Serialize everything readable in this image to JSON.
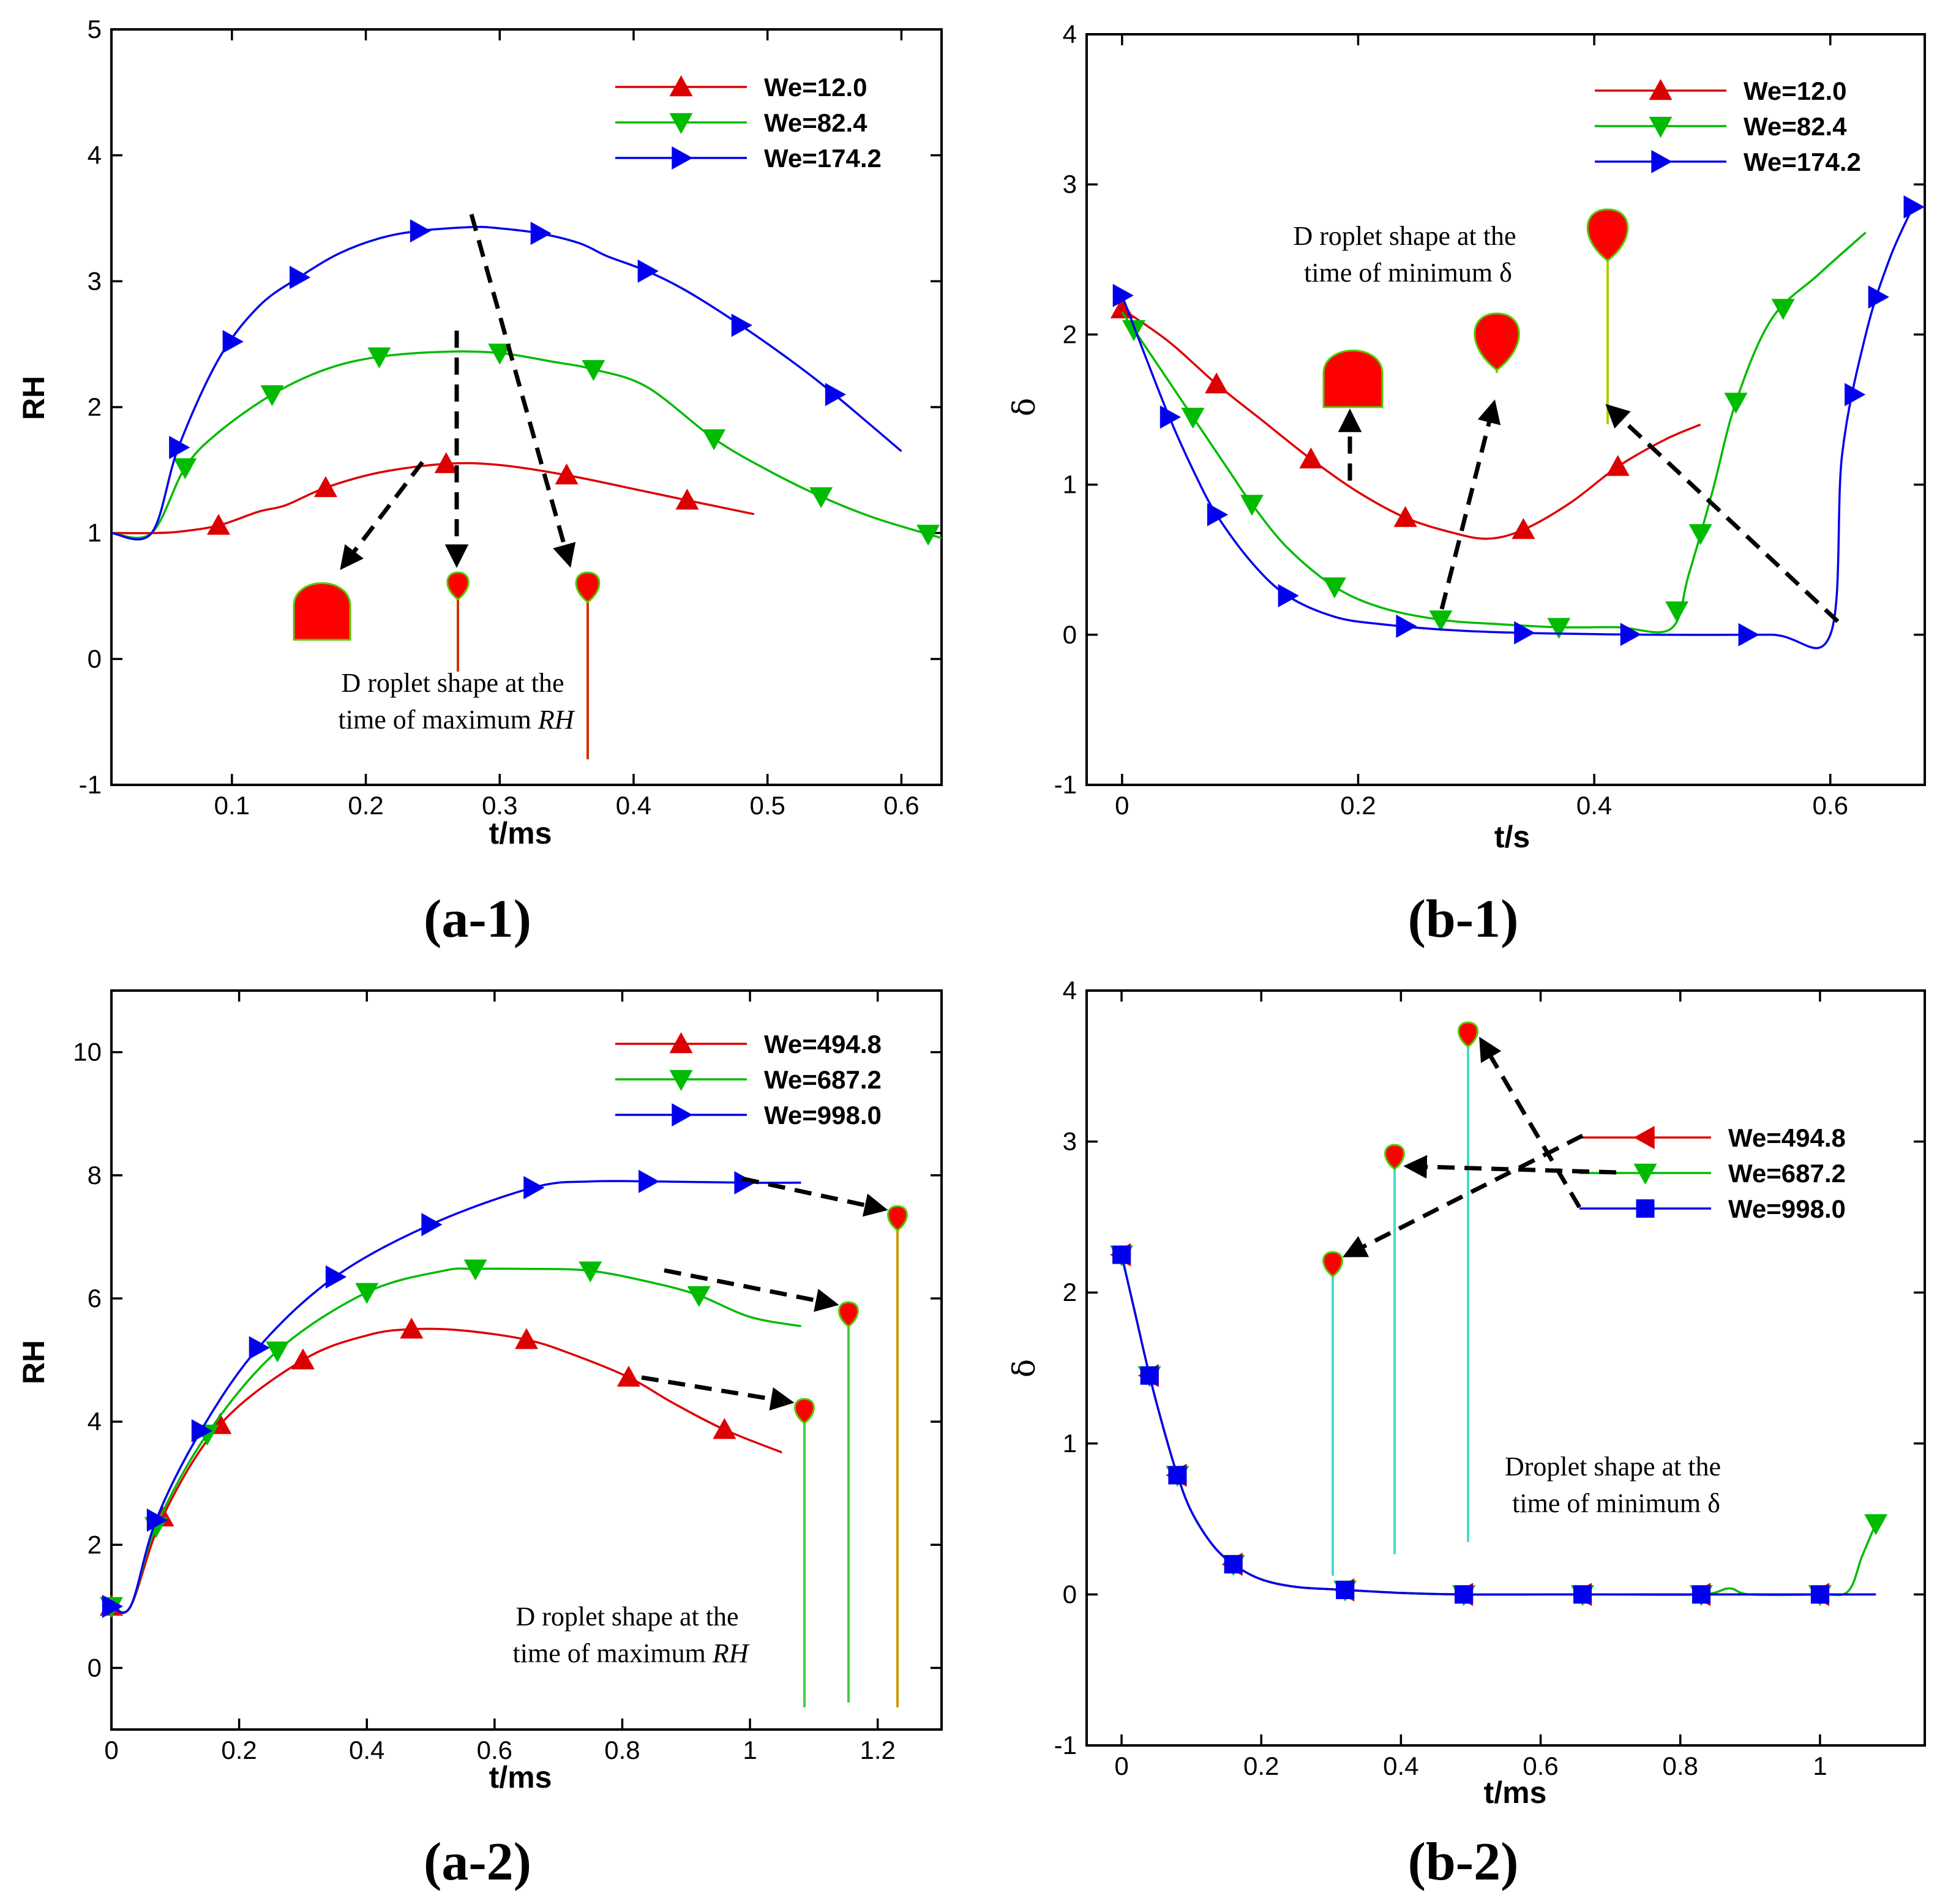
{
  "chart_data": [
    {
      "id": "a1",
      "type": "line",
      "panel_label": "(a-1)",
      "xlabel": "t/ms",
      "ylabel": "RH",
      "xlim": [
        0.01,
        0.63
      ],
      "ylim": [
        -1,
        5
      ],
      "xticks": [
        0.1,
        0.2,
        0.3,
        0.4,
        0.5,
        0.6
      ],
      "xtick_labels": [
        "0.1",
        "0.2",
        "0.3",
        "0.4",
        "0.5",
        "0.6"
      ],
      "yticks": [
        -1,
        0,
        1,
        2,
        3,
        4,
        5
      ],
      "ytick_labels": [
        "-1",
        "0",
        "1",
        "2",
        "3",
        "4",
        "5"
      ],
      "series": [
        {
          "name": "We=12.0",
          "color": "#dd0000",
          "marker": "triangle-up",
          "x": [
            0.01,
            0.04,
            0.06,
            0.09,
            0.12,
            0.14,
            0.17,
            0.21,
            0.26,
            0.3,
            0.35,
            0.4,
            0.44,
            0.49
          ],
          "y": [
            1.0,
            1.0,
            1.01,
            1.06,
            1.17,
            1.22,
            1.36,
            1.48,
            1.55,
            1.54,
            1.46,
            1.35,
            1.26,
            1.15
          ],
          "markers_x": [
            0.09,
            0.17,
            0.26,
            0.35,
            0.44
          ]
        },
        {
          "name": "We=82.4",
          "color": "#00bb00",
          "marker": "triangle-down",
          "x": [
            0.01,
            0.04,
            0.065,
            0.09,
            0.13,
            0.17,
            0.21,
            0.26,
            0.3,
            0.34,
            0.37,
            0.41,
            0.46,
            0.5,
            0.54,
            0.58,
            0.63
          ],
          "y": [
            1.0,
            1.0,
            1.52,
            1.8,
            2.1,
            2.3,
            2.4,
            2.44,
            2.43,
            2.36,
            2.3,
            2.16,
            1.75,
            1.5,
            1.29,
            1.12,
            0.96
          ],
          "markers_x": [
            0.065,
            0.13,
            0.21,
            0.3,
            0.37,
            0.46,
            0.54,
            0.62
          ]
        },
        {
          "name": "We=174.2",
          "color": "#0000ee",
          "marker": "triangle-right",
          "x": [
            0.01,
            0.04,
            0.06,
            0.09,
            0.12,
            0.15,
            0.18,
            0.21,
            0.24,
            0.28,
            0.3,
            0.33,
            0.36,
            0.38,
            0.41,
            0.44,
            0.48,
            0.52,
            0.55,
            0.6
          ],
          "y": [
            1.0,
            1.0,
            1.68,
            2.38,
            2.8,
            3.03,
            3.22,
            3.34,
            3.4,
            3.43,
            3.42,
            3.38,
            3.3,
            3.2,
            3.08,
            2.92,
            2.65,
            2.35,
            2.1,
            1.65
          ],
          "markers_x": [
            0.06,
            0.1,
            0.15,
            0.24,
            0.33,
            0.41,
            0.48,
            0.55
          ]
        }
      ],
      "annotation": [
        "D roplet  shape at the",
        "time of maximum",
        "RH"
      ]
    },
    {
      "id": "b1",
      "type": "line",
      "panel_label": "(b-1)",
      "xlabel": "t/s",
      "ylabel": "δ",
      "xlim": [
        -0.03,
        0.68
      ],
      "ylim": [
        -1,
        4
      ],
      "xticks": [
        0,
        0.2,
        0.4,
        0.6
      ],
      "xtick_labels": [
        "0",
        "0.2",
        "0.4",
        "0.6"
      ],
      "yticks": [
        -1,
        0,
        1,
        2,
        3,
        4
      ],
      "ytick_labels": [
        "-1",
        "0",
        "1",
        "2",
        "3",
        "4"
      ],
      "series": [
        {
          "name": "We=12.0",
          "color": "#dd0000",
          "marker": "triangle-up",
          "x": [
            0,
            0.04,
            0.08,
            0.12,
            0.16,
            0.2,
            0.24,
            0.28,
            0.31,
            0.34,
            0.38,
            0.42,
            0.46,
            0.49
          ],
          "y": [
            2.17,
            1.95,
            1.67,
            1.42,
            1.17,
            0.95,
            0.78,
            0.68,
            0.64,
            0.7,
            0.88,
            1.12,
            1.3,
            1.4
          ],
          "markers_x": [
            0,
            0.08,
            0.16,
            0.24,
            0.34,
            0.42
          ]
        },
        {
          "name": "We=82.4",
          "color": "#00bb00",
          "marker": "triangle-down",
          "x": [
            0,
            0.03,
            0.06,
            0.09,
            0.11,
            0.14,
            0.18,
            0.22,
            0.27,
            0.32,
            0.37,
            0.42,
            0.465,
            0.48,
            0.5,
            0.52,
            0.55,
            0.59,
            0.63
          ],
          "y": [
            2.15,
            1.8,
            1.45,
            1.1,
            0.87,
            0.58,
            0.32,
            0.18,
            0.1,
            0.07,
            0.05,
            0.05,
            0.04,
            0.4,
            0.95,
            1.55,
            2.1,
            2.4,
            2.68
          ],
          "markers_x": [
            0.01,
            0.06,
            0.11,
            0.18,
            0.27,
            0.37,
            0.47,
            0.49,
            0.52,
            0.56
          ]
        },
        {
          "name": "We=174.2",
          "color": "#0000ee",
          "marker": "triangle-right",
          "x": [
            0,
            0.02,
            0.04,
            0.06,
            0.08,
            0.11,
            0.14,
            0.18,
            0.22,
            0.28,
            0.35,
            0.45,
            0.55,
            0.6,
            0.61,
            0.63,
            0.65,
            0.67
          ],
          "y": [
            2.26,
            1.85,
            1.45,
            1.1,
            0.8,
            0.48,
            0.26,
            0.12,
            0.07,
            0.03,
            0.01,
            0.0,
            0.0,
            0.0,
            1.2,
            2.0,
            2.5,
            2.85
          ],
          "markers_x": [
            0,
            0.04,
            0.08,
            0.14,
            0.24,
            0.34,
            0.43,
            0.53,
            0.62,
            0.64,
            0.67
          ]
        }
      ],
      "annotation": [
        "D roplet  shape at the",
        "time of minimum δ"
      ]
    },
    {
      "id": "a2",
      "type": "line",
      "panel_label": "(a-2)",
      "xlabel": "t/ms",
      "ylabel": "RH",
      "xlim": [
        0,
        1.3
      ],
      "ylim": [
        -1,
        11
      ],
      "xticks": [
        0,
        0.2,
        0.4,
        0.6,
        0.8,
        1,
        1.2
      ],
      "xtick_labels": [
        "0",
        "0.2",
        "0.4",
        "0.6",
        "0.8",
        "1",
        "1.2"
      ],
      "yticks": [
        0,
        2,
        4,
        6,
        8,
        10
      ],
      "ytick_labels": [
        "0",
        "2",
        "4",
        "6",
        "8",
        "10"
      ],
      "series": [
        {
          "name": "We=494.8",
          "color": "#dd0000",
          "marker": "triangle-up",
          "x": [
            0,
            0.03,
            0.08,
            0.17,
            0.3,
            0.4,
            0.47,
            0.55,
            0.65,
            0.72,
            0.81,
            0.88,
            0.96,
            1.05
          ],
          "y": [
            1.0,
            1.0,
            2.45,
            3.95,
            5.0,
            5.4,
            5.5,
            5.48,
            5.33,
            5.1,
            4.72,
            4.3,
            3.87,
            3.5
          ],
          "markers_x": [
            0,
            0.08,
            0.17,
            0.3,
            0.47,
            0.65,
            0.81,
            0.96
          ]
        },
        {
          "name": "We=687.2",
          "color": "#00bb00",
          "marker": "triangle-down",
          "x": [
            0,
            0.03,
            0.07,
            0.15,
            0.26,
            0.4,
            0.52,
            0.57,
            0.65,
            0.75,
            0.85,
            0.92,
            1.0,
            1.08
          ],
          "y": [
            1.0,
            1.0,
            2.3,
            3.8,
            5.15,
            6.1,
            6.45,
            6.48,
            6.48,
            6.45,
            6.25,
            6.05,
            5.7,
            5.55
          ],
          "markers_x": [
            0,
            0.07,
            0.15,
            0.26,
            0.4,
            0.57,
            0.75,
            0.92
          ]
        },
        {
          "name": "We=998.0",
          "color": "#0000ee",
          "marker": "triangle-right",
          "x": [
            0,
            0.03,
            0.07,
            0.14,
            0.23,
            0.35,
            0.5,
            0.66,
            0.75,
            0.85,
            0.99,
            1.08
          ],
          "y": [
            1.0,
            1.0,
            2.4,
            3.85,
            5.2,
            6.35,
            7.2,
            7.8,
            7.9,
            7.9,
            7.88,
            7.88
          ],
          "markers_x": [
            0,
            0.07,
            0.14,
            0.23,
            0.35,
            0.5,
            0.66,
            0.84,
            0.99
          ]
        }
      ],
      "annotation": [
        "D roplet  shape at the",
        "time of maximum",
        "RH"
      ]
    },
    {
      "id": "b2",
      "type": "line",
      "panel_label": "(b-2)",
      "xlabel": "t/ms",
      "ylabel": "δ",
      "xlim": [
        -0.05,
        1.15
      ],
      "ylim": [
        -1,
        4
      ],
      "xticks": [
        0,
        0.2,
        0.4,
        0.6,
        0.8,
        1
      ],
      "xtick_labels": [
        "0",
        "0.2",
        "0.4",
        "0.6",
        "0.8",
        "1"
      ],
      "yticks": [
        -1,
        0,
        1,
        2,
        3,
        4
      ],
      "ytick_labels": [
        "-1",
        "0",
        "1",
        "2",
        "3",
        "4"
      ],
      "series": [
        {
          "name": "We=494.8",
          "color": "#dd0000",
          "marker": "triangle-left",
          "x": [
            0,
            0.02,
            0.04,
            0.06,
            0.08,
            0.1,
            0.13,
            0.16,
            0.2,
            0.25,
            0.32,
            0.4,
            0.49,
            0.6,
            0.7,
            0.83,
            0.9,
            1.0,
            1.08
          ],
          "y": [
            2.25,
            1.85,
            1.45,
            1.1,
            0.79,
            0.55,
            0.33,
            0.2,
            0.1,
            0.05,
            0.03,
            0.01,
            0.0,
            0.0,
            0.0,
            0.0,
            0.0,
            0.0,
            0.0
          ],
          "markers_x": [
            0,
            0.04,
            0.08,
            0.16,
            0.32,
            0.49,
            0.66,
            0.83,
            1.0
          ]
        },
        {
          "name": "We=687.2",
          "color": "#00bb00",
          "marker": "triangle-down",
          "x": [
            0,
            0.02,
            0.04,
            0.06,
            0.08,
            0.1,
            0.13,
            0.16,
            0.2,
            0.25,
            0.32,
            0.4,
            0.49,
            0.6,
            0.7,
            0.83,
            0.87,
            0.9,
            1.0,
            1.04,
            1.06,
            1.08
          ],
          "y": [
            2.25,
            1.85,
            1.45,
            1.1,
            0.79,
            0.55,
            0.33,
            0.2,
            0.1,
            0.05,
            0.03,
            0.01,
            0.0,
            0.0,
            0.0,
            0.0,
            0.04,
            0.0,
            0.0,
            0.02,
            0.25,
            0.47
          ],
          "markers_x": [
            0,
            0.04,
            0.08,
            0.16,
            0.32,
            0.49,
            0.66,
            0.83,
            1.0,
            1.08
          ]
        },
        {
          "name": "We=998.0",
          "color": "#0000ee",
          "marker": "square",
          "x": [
            0,
            0.02,
            0.04,
            0.06,
            0.08,
            0.1,
            0.13,
            0.16,
            0.2,
            0.25,
            0.32,
            0.4,
            0.49,
            0.6,
            0.7,
            0.83,
            0.9,
            1.0,
            1.08
          ],
          "y": [
            2.25,
            1.85,
            1.45,
            1.1,
            0.79,
            0.55,
            0.33,
            0.2,
            0.1,
            0.05,
            0.03,
            0.01,
            0.0,
            0.0,
            0.0,
            0.0,
            0.0,
            0.0,
            0.0
          ],
          "markers_x": [
            0,
            0.04,
            0.08,
            0.16,
            0.32,
            0.49,
            0.66,
            0.83,
            1.0
          ]
        }
      ],
      "annotation": [
        "Droplet shape at the",
        "time of minimum δ"
      ]
    }
  ]
}
